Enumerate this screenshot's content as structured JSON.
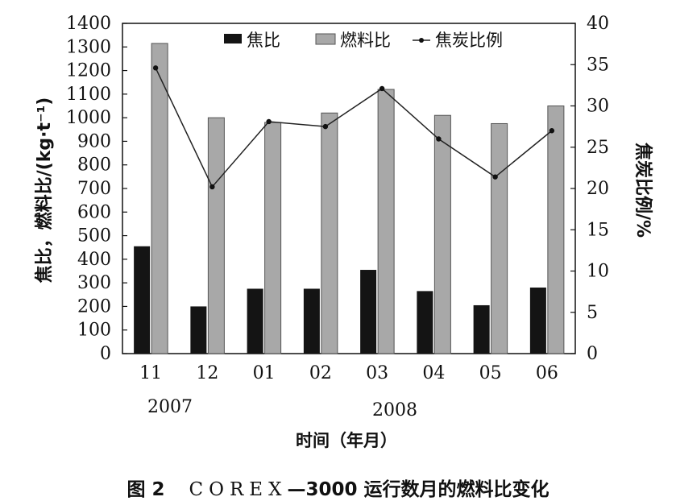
{
  "chart_data": {
    "type": "bar",
    "categories": [
      "11",
      "12",
      "01",
      "02",
      "03",
      "04",
      "05",
      "06"
    ],
    "year_labels": [
      "2007",
      "2008"
    ],
    "series": [
      {
        "name": "焦比",
        "kind": "bar",
        "axis": "left",
        "color": "#141414",
        "values": [
          455,
          200,
          275,
          275,
          355,
          265,
          205,
          280
        ]
      },
      {
        "name": "燃料比",
        "kind": "bar",
        "axis": "left",
        "color": "#a8a8a8",
        "values": [
          1315,
          1000,
          980,
          1020,
          1120,
          1010,
          975,
          1050
        ]
      },
      {
        "name": "焦炭比例",
        "kind": "line",
        "axis": "right",
        "color": "#222222",
        "values": [
          34.6,
          20.2,
          28.1,
          27.5,
          32.1,
          26.0,
          21.4,
          27.0
        ]
      }
    ],
    "yleft": {
      "label": "焦比，燃料比/(kg·t⁻¹)",
      "min": 0,
      "max": 1400,
      "ticks": [
        "0",
        "100",
        "200",
        "300",
        "400",
        "500",
        "600",
        "700",
        "800",
        "900",
        "1000",
        "1100",
        "1200",
        "1300",
        "1400"
      ]
    },
    "yright": {
      "label": "焦炭比例/%",
      "min": 0,
      "max": 40,
      "ticks": [
        "0",
        "5",
        "10",
        "15",
        "20",
        "25",
        "30",
        "35",
        "40"
      ]
    },
    "xlabel": "时间（年月）",
    "legend_position": "top-center"
  },
  "caption": {
    "figure": "图 2",
    "model": "COREX",
    "rest": "—3000 运行数月的燃料比变化"
  }
}
